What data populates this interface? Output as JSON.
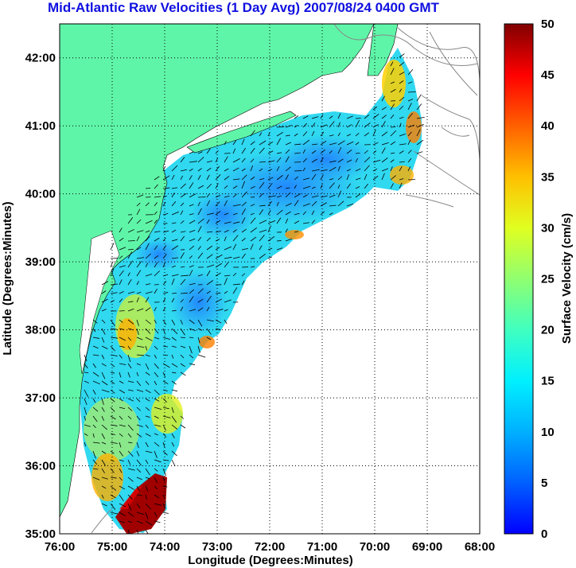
{
  "title": "Mid-Atlantic Raw Velocities (1 Day Avg) 2007/08/24 0400 GMT",
  "xlabel": "Longitude (Degrees:Minutes)",
  "ylabel": "Latitude (Degrees:Minutes)",
  "x_ticks": [
    "76:00",
    "75:00",
    "74:00",
    "73:00",
    "72:00",
    "71:00",
    "70:00",
    "69:00",
    "68:00"
  ],
  "y_ticks": [
    "42:00",
    "41:00",
    "40:00",
    "39:00",
    "38:00",
    "37:00",
    "36:00",
    "35:00"
  ],
  "colorbar": {
    "label": "Surface Velocity (cm/s)",
    "ticks": [
      "50",
      "45",
      "40",
      "35",
      "30",
      "25",
      "20",
      "15",
      "10",
      "5",
      "0"
    ],
    "range": [
      0,
      50
    ],
    "colormap": "jet"
  },
  "colors": {
    "land": "#5ff5a8",
    "title": "#1010e0",
    "grid": "#000000"
  },
  "map": {
    "lon_range": [
      -76,
      -68
    ],
    "lat_range": [
      35,
      42.5
    ],
    "grid": "dotted"
  }
}
